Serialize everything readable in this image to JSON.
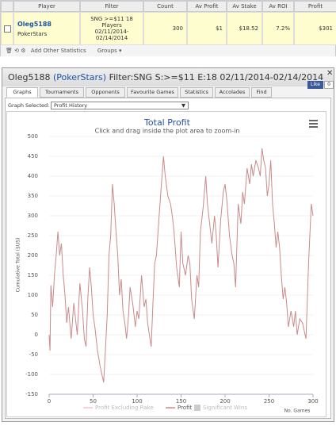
{
  "table": {
    "header": [
      "Player",
      "Filter",
      "Count",
      "Av Profit",
      "Av Stake",
      "Av ROI",
      "Profit"
    ],
    "row": {
      "player": "Oleg5188",
      "site": "PokerStars",
      "filter": "SNG >=$11 18 Players 02/11/2014-02/14/2014",
      "count": "300",
      "av_profit": "$1",
      "av_stake": "$18.52",
      "av_roi": "7.2%",
      "profit": "$301"
    },
    "toolbar": [
      "Add Other Statistics",
      "Groups"
    ]
  },
  "panel": {
    "player": "Oleg5188",
    "site": "(PokerStars)",
    "filter": "Filter:SNG S:>=$11 E:18 02/11/2014-02/14/2014",
    "like": "Like",
    "like_count": "0",
    "tabs": [
      "Graphs",
      "Tournaments",
      "Opponents",
      "Favourite Games",
      "Statistics",
      "Accolades",
      "Find"
    ],
    "graph_selected_label": "Graph Selected:",
    "graph_selected": "Profit History"
  },
  "chart_data": {
    "type": "line",
    "title": "Total Profit",
    "subtitle": "Click and drag inside the plot area to zoom-in",
    "y_label": "Cumulative Total ($US)",
    "x_label": "No. Games",
    "xlim": [
      0,
      300
    ],
    "xticks": [
      0,
      50,
      100,
      150,
      200,
      250,
      300
    ],
    "ylim": [
      -150,
      500
    ],
    "yticks": [
      -150,
      -100,
      -50,
      0,
      50,
      100,
      150,
      200,
      250,
      300,
      350,
      400,
      450,
      500
    ],
    "grid": true,
    "x": [
      0,
      1,
      2,
      4,
      6,
      8,
      10,
      12,
      14,
      16,
      18,
      20,
      22,
      25,
      28,
      30,
      32,
      35,
      38,
      40,
      42,
      44,
      46,
      48,
      50,
      52,
      55,
      58,
      60,
      62,
      64,
      66,
      68,
      70,
      72,
      74,
      76,
      78,
      80,
      82,
      84,
      86,
      88,
      90,
      92,
      95,
      98,
      100,
      102,
      105,
      108,
      110,
      112,
      114,
      116,
      118,
      120,
      122,
      125,
      128,
      130,
      132,
      135,
      138,
      140,
      142,
      145,
      148,
      150,
      152,
      155,
      158,
      160,
      162,
      165,
      168,
      170,
      172,
      175,
      178,
      180,
      182,
      185,
      188,
      190,
      192,
      195,
      198,
      200,
      202,
      205,
      208,
      210,
      212,
      215,
      218,
      220,
      222,
      225,
      228,
      230,
      232,
      235,
      238,
      240,
      242,
      244,
      246,
      248,
      250,
      252,
      254,
      256,
      258,
      260,
      262,
      264,
      266,
      268,
      270,
      272,
      275,
      278,
      280,
      282,
      285,
      288,
      290,
      292,
      295,
      298,
      300
    ],
    "series": [
      {
        "name": "Profit",
        "color": "#c98a8a",
        "values": [
          0,
          -40,
          125,
          70,
          150,
          200,
          260,
          200,
          230,
          150,
          100,
          30,
          70,
          -10,
          80,
          40,
          0,
          130,
          60,
          -10,
          -30,
          90,
          170,
          120,
          50,
          20,
          -40,
          -80,
          -100,
          -120,
          -40,
          50,
          200,
          250,
          380,
          330,
          260,
          200,
          100,
          140,
          60,
          30,
          -10,
          40,
          120,
          80,
          20,
          60,
          40,
          150,
          70,
          90,
          30,
          0,
          -30,
          80,
          180,
          200,
          300,
          390,
          450,
          400,
          350,
          330,
          300,
          260,
          170,
          120,
          260,
          180,
          150,
          200,
          180,
          90,
          40,
          150,
          120,
          260,
          320,
          400,
          330,
          290,
          230,
          300,
          250,
          170,
          290,
          360,
          380,
          340,
          250,
          200,
          180,
          120,
          330,
          280,
          360,
          330,
          420,
          380,
          430,
          400,
          440,
          420,
          400,
          470,
          440,
          420,
          350,
          380,
          440,
          330,
          280,
          220,
          260,
          220,
          150,
          90,
          120,
          80,
          20,
          60,
          20,
          60,
          0,
          40,
          30,
          10,
          -10,
          180,
          330,
          300
        ]
      }
    ],
    "legend": [
      {
        "name": "Profit Excluding Rake",
        "color": "#f0c8c8"
      },
      {
        "name": "Profit",
        "color": "#c98a8a"
      },
      {
        "name": "Significant Wins",
        "color": "#cccccc"
      }
    ]
  }
}
